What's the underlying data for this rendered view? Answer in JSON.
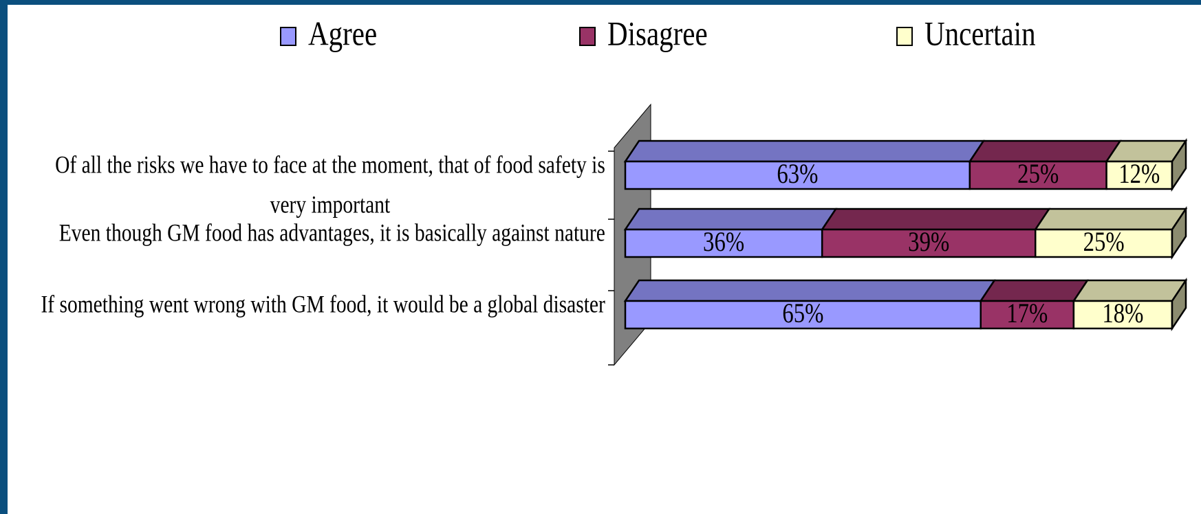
{
  "chart_data": {
    "type": "stacked_bar_horizontal",
    "categories": [
      "Of all the risks we have to face at the moment, that of food safety is very important",
      "Even though GM food has advantages, it is basically against nature",
      "If something went wrong with GM food, it would be a global disaster"
    ],
    "series": [
      {
        "name": "Agree",
        "color": "#9999ff",
        "values": [
          63,
          36,
          65
        ],
        "value_labels": [
          "63%",
          "36%",
          "65%"
        ]
      },
      {
        "name": "Disagree",
        "color": "#993366",
        "values": [
          25,
          39,
          17
        ],
        "value_labels": [
          "25%",
          "39%",
          "17%"
        ]
      },
      {
        "name": "Uncertain",
        "color": "#ffffcc",
        "values": [
          12,
          25,
          18
        ],
        "value_labels": [
          "12%",
          "25%",
          "18%"
        ]
      }
    ],
    "legend": "top"
  }
}
